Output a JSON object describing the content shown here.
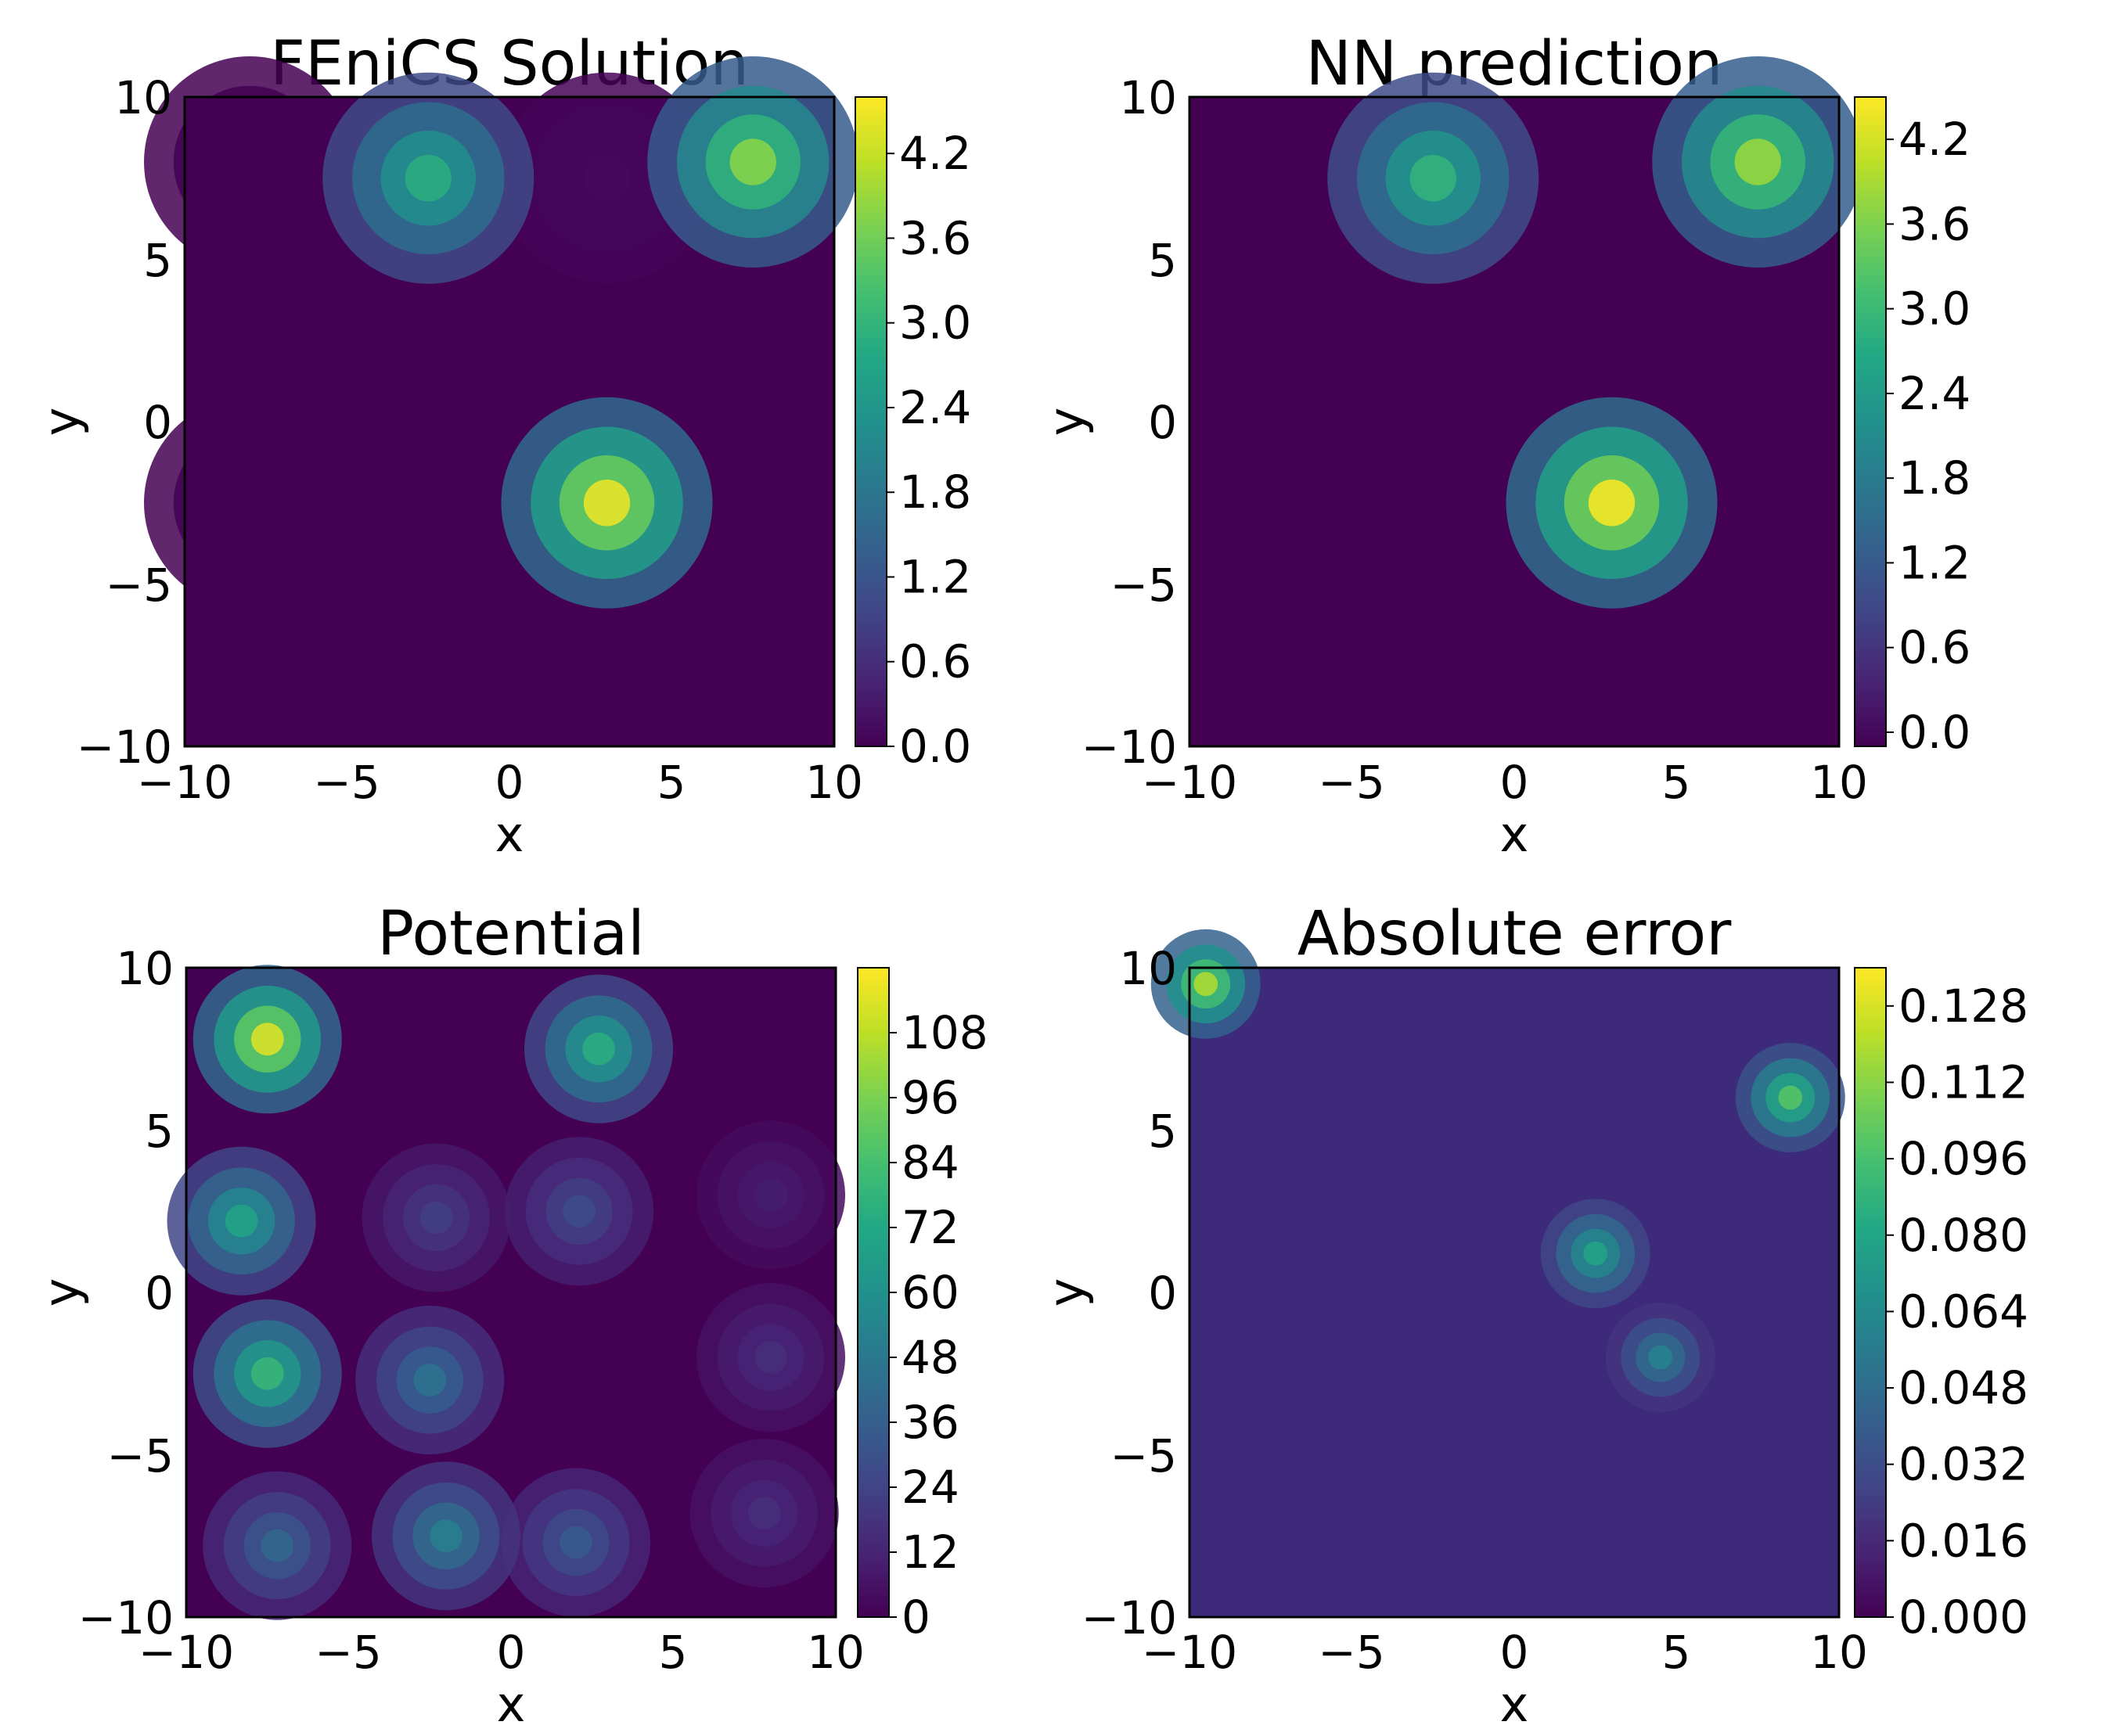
{
  "chart_data": [
    {
      "type": "heatmap",
      "title": "FEniCS Solution",
      "xlabel": "x",
      "ylabel": "y",
      "xlim": [
        -10,
        10
      ],
      "ylim": [
        -10,
        10
      ],
      "xticks": [
        "−10",
        "−5",
        "0",
        "5",
        "10"
      ],
      "yticks": [
        "−10",
        "−5",
        "0",
        "5",
        "10"
      ],
      "colormap": "viridis",
      "colorbar": {
        "range": [
          0.0,
          4.6
        ],
        "ticks": [
          0.0,
          0.6,
          1.2,
          1.8,
          2.4,
          3.0,
          3.6,
          4.2
        ],
        "tick_labels": [
          "0.0",
          "0.6",
          "1.2",
          "1.8",
          "2.4",
          "3.0",
          "3.6",
          "4.2"
        ]
      },
      "field_features": [
        {
          "x": 3,
          "y": -2.5,
          "value": 4.5
        },
        {
          "x": 7.5,
          "y": 8,
          "value": 3.8
        },
        {
          "x": -2.5,
          "y": 7.5,
          "value": 2.9
        },
        {
          "x": 3,
          "y": 7.5,
          "value": 0.1
        },
        {
          "x": -8,
          "y": 8,
          "value": 0.0
        },
        {
          "x": -8,
          "y": -2.5,
          "value": 0.0
        }
      ]
    },
    {
      "type": "heatmap",
      "title": "NN prediction",
      "xlabel": "x",
      "ylabel": "y",
      "xlim": [
        -10,
        10
      ],
      "ylim": [
        -10,
        10
      ],
      "xticks": [
        "−10",
        "−5",
        "0",
        "5",
        "10"
      ],
      "yticks": [
        "−10",
        "−5",
        "0",
        "5",
        "10"
      ],
      "colormap": "viridis",
      "colorbar": {
        "range": [
          -0.1,
          4.5
        ],
        "ticks": [
          0.0,
          0.6,
          1.2,
          1.8,
          2.4,
          3.0,
          3.6,
          4.2
        ],
        "tick_labels": [
          "0.0",
          "0.6",
          "1.2",
          "1.8",
          "2.4",
          "3.0",
          "3.6",
          "4.2"
        ]
      },
      "field_features": [
        {
          "x": 3,
          "y": -2.5,
          "value": 4.5
        },
        {
          "x": 7.5,
          "y": 8,
          "value": 3.8
        },
        {
          "x": -2.5,
          "y": 7.5,
          "value": 2.9
        }
      ]
    },
    {
      "type": "heatmap",
      "title": "Potential",
      "xlabel": "x",
      "ylabel": "y",
      "xlim": [
        -10,
        10
      ],
      "ylim": [
        -10,
        10
      ],
      "xticks": [
        "−10",
        "−5",
        "0",
        "5",
        "10"
      ],
      "yticks": [
        "−10",
        "−5",
        "0",
        "5",
        "10"
      ],
      "colormap": "viridis",
      "colorbar": {
        "range": [
          0,
          120
        ],
        "ticks": [
          0,
          12,
          24,
          36,
          48,
          60,
          72,
          84,
          96,
          108
        ],
        "tick_labels": [
          "0",
          "12",
          "24",
          "36",
          "48",
          "60",
          "72",
          "84",
          "96",
          "108"
        ]
      },
      "field_features": [
        {
          "x": -7.5,
          "y": 7.8,
          "value": 115
        },
        {
          "x": 2.7,
          "y": 7.5,
          "value": 75
        },
        {
          "x": -8.3,
          "y": 2.2,
          "value": 70
        },
        {
          "x": -2.3,
          "y": 2.3,
          "value": 22
        },
        {
          "x": 2.1,
          "y": 2.5,
          "value": 28
        },
        {
          "x": 8.0,
          "y": 3.0,
          "value": 10
        },
        {
          "x": -7.5,
          "y": -2.5,
          "value": 80
        },
        {
          "x": -2.5,
          "y": -2.7,
          "value": 45
        },
        {
          "x": 8.0,
          "y": -2.0,
          "value": 16
        },
        {
          "x": -7.2,
          "y": -7.8,
          "value": 40
        },
        {
          "x": -2.0,
          "y": -7.5,
          "value": 52
        },
        {
          "x": 2.0,
          "y": -7.7,
          "value": 34
        },
        {
          "x": 7.8,
          "y": -6.8,
          "value": 16
        }
      ]
    },
    {
      "type": "heatmap",
      "title": "Absolute error",
      "xlabel": "x",
      "ylabel": "y",
      "xlim": [
        -10,
        10
      ],
      "ylim": [
        -10,
        10
      ],
      "xticks": [
        "−10",
        "−5",
        "0",
        "5",
        "10"
      ],
      "yticks": [
        "−10",
        "−5",
        "0",
        "5",
        "10"
      ],
      "colormap": "viridis",
      "colorbar": {
        "range": [
          0.0,
          0.136
        ],
        "ticks": [
          0.0,
          0.016,
          0.032,
          0.048,
          0.064,
          0.08,
          0.096,
          0.112,
          0.128
        ],
        "tick_labels": [
          "0.000",
          "0.016",
          "0.032",
          "0.048",
          "0.064",
          "0.080",
          "0.096",
          "0.112",
          "0.128"
        ]
      },
      "field_features": [
        {
          "x": 8.5,
          "y": 6.0,
          "value": 0.1
        },
        {
          "x": 4.5,
          "y": -2.0,
          "value": 0.06
        },
        {
          "x": 2.5,
          "y": 1.2,
          "value": 0.08
        },
        {
          "x": -9.5,
          "y": 9.5,
          "value": 0.12
        }
      ]
    }
  ]
}
